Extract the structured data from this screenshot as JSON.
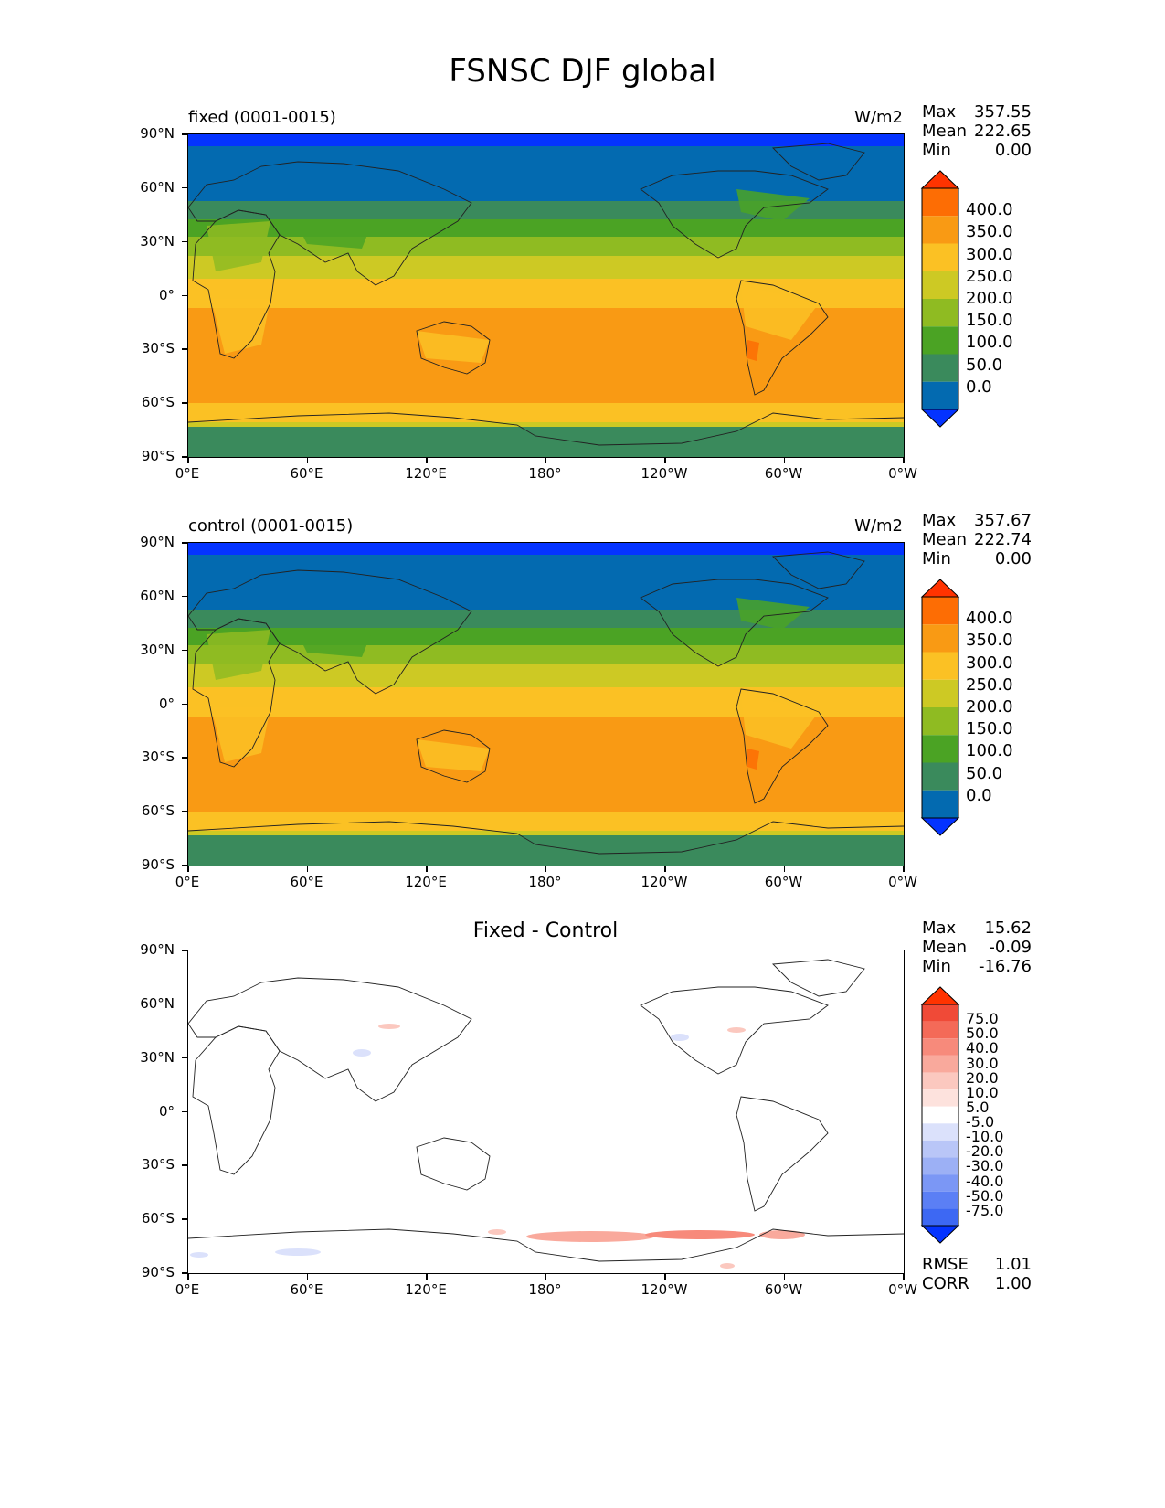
{
  "title": "FSNSC DJF global",
  "lon_ticks": [
    "0°E",
    "60°E",
    "120°E",
    "180°",
    "120°W",
    "60°W",
    "0°W"
  ],
  "lat_ticks": [
    "90°N",
    "60°N",
    "30°N",
    "0°",
    "30°S",
    "60°S",
    "90°S"
  ],
  "panels": [
    {
      "title": "fixed (0001-0015)",
      "units": "W/m2",
      "stats": {
        "max_label": "Max",
        "max": "357.55",
        "mean_label": "Mean",
        "mean": "222.65",
        "min_label": "Min",
        "min": "0.00"
      },
      "colorbar_labels": [
        "400.0",
        "350.0",
        "300.0",
        "250.0",
        "200.0",
        "150.0",
        "100.0",
        "50.0",
        "0.0"
      ]
    },
    {
      "title": "control (0001-0015)",
      "units": "W/m2",
      "stats": {
        "max_label": "Max",
        "max": "357.67",
        "mean_label": "Mean",
        "mean": "222.74",
        "min_label": "Min",
        "min": "0.00"
      },
      "colorbar_labels": [
        "400.0",
        "350.0",
        "300.0",
        "250.0",
        "200.0",
        "150.0",
        "100.0",
        "50.0",
        "0.0"
      ]
    },
    {
      "title": "Fixed - Control",
      "stats": {
        "max_label": "Max",
        "max": "15.62",
        "mean_label": "Mean",
        "mean": "-0.09",
        "min_label": "Min",
        "min": "-16.76"
      },
      "colorbar_labels": [
        "75.0",
        "50.0",
        "40.0",
        "30.0",
        "20.0",
        "10.0",
        "5.0",
        "-5.0",
        "-10.0",
        "-20.0",
        "-30.0",
        "-40.0",
        "-50.0",
        "-75.0"
      ],
      "rmse_label": "RMSE",
      "rmse": "1.01",
      "corr_label": "CORR",
      "corr": "1.00"
    }
  ],
  "colors": {
    "abs_levels": [
      "#0433ff",
      "#036ab0",
      "#3a8a5c",
      "#4ba324",
      "#8fbb22",
      "#cdc924",
      "#fbc124",
      "#f99a14",
      "#fd6d04",
      "#ff3300"
    ],
    "diff_levels": [
      "#0433ff",
      "#3d68f3",
      "#5b7ff5",
      "#7b97f5",
      "#9cb0f5",
      "#b9c6f7",
      "#dbe1fb",
      "#ffffff",
      "#fde2dd",
      "#fbc8bf",
      "#f9a99c",
      "#f78a7b",
      "#f46a58",
      "#f04a37",
      "#ff3300"
    ]
  }
}
